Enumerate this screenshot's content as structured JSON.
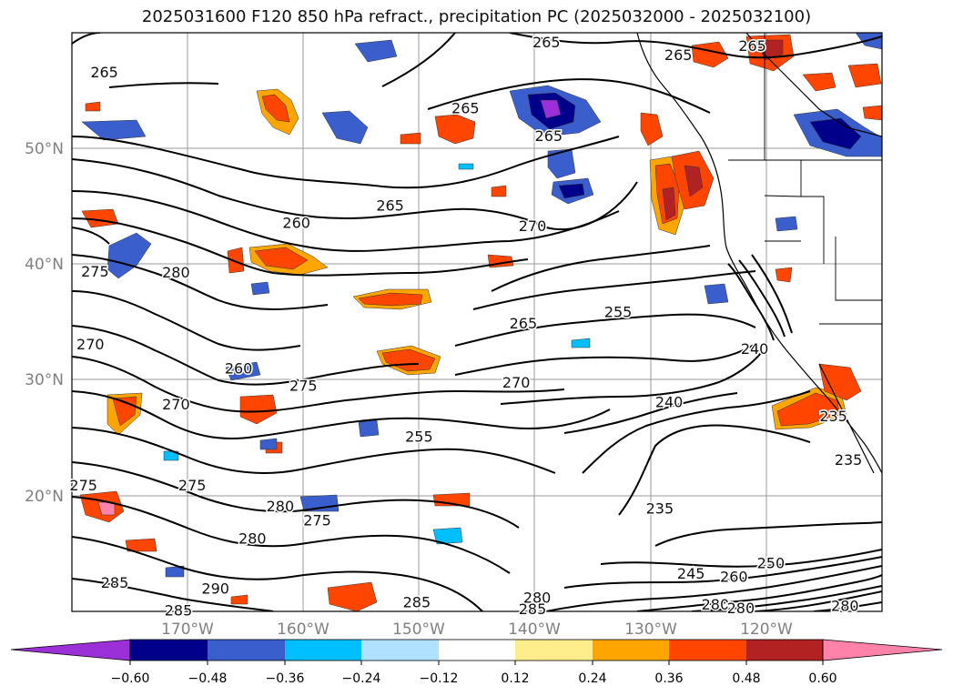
{
  "title": "2025031600 F120 850 hPa refract., precipitation PC (2025032000 - 2025032100)",
  "lat_labels": [
    "50°N",
    "40°N",
    "30°N",
    "20°N"
  ],
  "lon_labels": [
    "170°W",
    "160°W",
    "150°W",
    "140°W",
    "130°W",
    "120°W"
  ],
  "contour_labels": [
    {
      "text": "265",
      "lon": -177.2,
      "lat": 56.5
    },
    {
      "text": "265",
      "lon": -139.0,
      "lat": 59.1
    },
    {
      "text": "265",
      "lon": -127.6,
      "lat": 58.0
    },
    {
      "text": "265",
      "lon": -121.2,
      "lat": 58.8
    },
    {
      "text": "265",
      "lon": -146.0,
      "lat": 53.4
    },
    {
      "text": "265",
      "lon": -138.8,
      "lat": 51.0
    },
    {
      "text": "265",
      "lon": -152.5,
      "lat": 45.0
    },
    {
      "text": "260",
      "lon": -160.6,
      "lat": 43.5
    },
    {
      "text": "270",
      "lon": -140.2,
      "lat": 43.2
    },
    {
      "text": "275",
      "lon": -178.0,
      "lat": 39.3
    },
    {
      "text": "280",
      "lon": -171.0,
      "lat": 39.2
    },
    {
      "text": "265",
      "lon": -141.0,
      "lat": 34.8
    },
    {
      "text": "255",
      "lon": -132.8,
      "lat": 35.8
    },
    {
      "text": "270",
      "lon": -178.4,
      "lat": 33.0
    },
    {
      "text": "240",
      "lon": -121.0,
      "lat": 32.6
    },
    {
      "text": "260",
      "lon": -165.6,
      "lat": 30.9
    },
    {
      "text": "275",
      "lon": -160.0,
      "lat": 29.4
    },
    {
      "text": "270",
      "lon": -141.6,
      "lat": 29.7
    },
    {
      "text": "270",
      "lon": -171.0,
      "lat": 27.8
    },
    {
      "text": "240",
      "lon": -128.4,
      "lat": 28.0
    },
    {
      "text": "235",
      "lon": -114.2,
      "lat": 26.8
    },
    {
      "text": "255",
      "lon": -150.0,
      "lat": 25.0
    },
    {
      "text": "235",
      "lon": -112.9,
      "lat": 23.0
    },
    {
      "text": "275",
      "lon": -179.0,
      "lat": 20.8
    },
    {
      "text": "275",
      "lon": -169.6,
      "lat": 20.8
    },
    {
      "text": "280",
      "lon": -162.0,
      "lat": 19.0
    },
    {
      "text": "275",
      "lon": -158.8,
      "lat": 17.8
    },
    {
      "text": "235",
      "lon": -129.2,
      "lat": 18.8
    },
    {
      "text": "280",
      "lon": -164.4,
      "lat": 16.2
    },
    {
      "text": "250",
      "lon": -119.6,
      "lat": 14.1
    },
    {
      "text": "245",
      "lon": -126.5,
      "lat": 13.2
    },
    {
      "text": "260",
      "lon": -122.8,
      "lat": 12.9
    },
    {
      "text": "285",
      "lon": -176.3,
      "lat": 12.4
    },
    {
      "text": "290",
      "lon": -167.6,
      "lat": 11.9
    },
    {
      "text": "280",
      "lon": -139.8,
      "lat": 11.1
    },
    {
      "text": "285",
      "lon": -150.2,
      "lat": 10.7
    },
    {
      "text": "285",
      "lon": -140.2,
      "lat": 10.1
    },
    {
      "text": "285",
      "lon": -170.8,
      "lat": 10.0
    },
    {
      "text": "280",
      "lon": -124.4,
      "lat": 10.5
    },
    {
      "text": "280",
      "lon": -122.2,
      "lat": 10.2
    },
    {
      "text": "280",
      "lon": -113.2,
      "lat": 10.4
    }
  ],
  "colorbar": {
    "ticks": [
      "−0.60",
      "−0.48",
      "−0.36",
      "−0.24",
      "−0.12",
      "0.12",
      "0.24",
      "0.36",
      "0.48",
      "0.60"
    ],
    "colors": [
      "#9b30d9",
      "#00008b",
      "#3a5fcd",
      "#00bfff",
      "#b0e2ff",
      "#ffffff",
      "#ffec8b",
      "#ffa500",
      "#ff4500",
      "#b22222",
      "#ff82ab"
    ]
  },
  "precip_colors": {
    "pos_light": "#ffec8b",
    "pos_mid": "#ffa500",
    "pos_strong": "#ff4500",
    "pos_max": "#b22222",
    "pos_peak": "#ff82ab",
    "neg_light": "#b0e2ff",
    "neg_mid": "#00bfff",
    "neg_strong": "#3a5fcd",
    "neg_max": "#00008b",
    "neg_peak": "#9b30d9"
  }
}
